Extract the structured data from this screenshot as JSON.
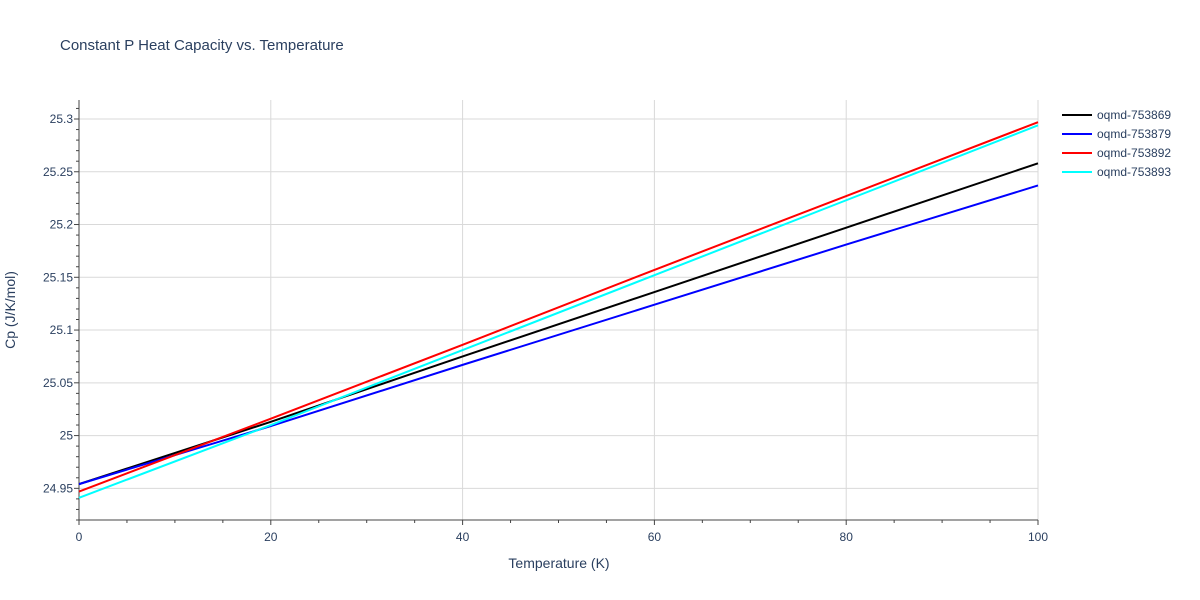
{
  "chart_data": {
    "type": "line",
    "title": "Constant P Heat Capacity vs. Temperature",
    "xlabel": "Temperature (K)",
    "ylabel": "Cp (J/K/mol)",
    "xlim": [
      0,
      100
    ],
    "ylim": [
      24.92,
      25.318
    ],
    "x_ticks": [
      0,
      20,
      40,
      60,
      80,
      100
    ],
    "x_tick_labels": [
      "0",
      "20",
      "40",
      "60",
      "80",
      "100"
    ],
    "y_ticks": [
      24.95,
      25.0,
      25.05,
      25.1,
      25.15,
      25.2,
      25.25,
      25.3
    ],
    "y_tick_labels": [
      "24.95",
      "25",
      "25.05",
      "25.1",
      "25.15",
      "25.2",
      "25.25",
      "25.3"
    ],
    "grid": true,
    "legend_position": "top-right",
    "x": [
      0,
      20,
      40,
      60,
      80,
      100
    ],
    "series": [
      {
        "name": "oqmd-753869",
        "color": "#000000",
        "values": [
          24.954,
          25.013,
          25.075,
          25.136,
          25.197,
          25.258
        ]
      },
      {
        "name": "oqmd-753879",
        "color": "#0000ff",
        "values": [
          24.954,
          25.009,
          25.067,
          25.124,
          25.181,
          25.237
        ]
      },
      {
        "name": "oqmd-753892",
        "color": "#ff0000",
        "values": [
          24.947,
          25.016,
          25.086,
          25.157,
          25.227,
          25.297
        ]
      },
      {
        "name": "oqmd-753893",
        "color": "#00ffff",
        "values": [
          24.941,
          25.01,
          25.081,
          25.152,
          25.223,
          25.294
        ]
      }
    ]
  }
}
